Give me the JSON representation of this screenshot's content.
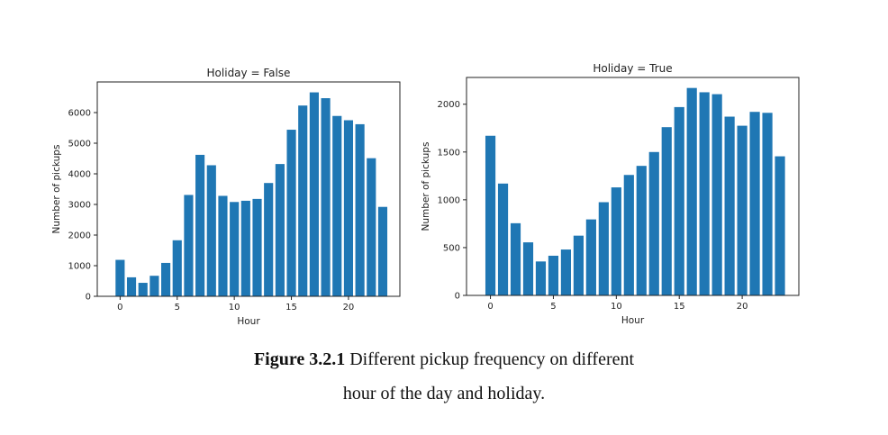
{
  "chart_data": [
    {
      "type": "bar",
      "title": "Holiday = False",
      "xlabel": "Hour",
      "ylabel": "Number of pickups",
      "categories": [
        0,
        1,
        2,
        3,
        4,
        5,
        6,
        7,
        8,
        9,
        10,
        11,
        12,
        13,
        14,
        15,
        16,
        17,
        18,
        19,
        20,
        21,
        22,
        23
      ],
      "values": [
        1190,
        620,
        440,
        670,
        1090,
        1830,
        3310,
        4620,
        4280,
        3280,
        3080,
        3120,
        3180,
        3700,
        4320,
        5440,
        6230,
        6660,
        6470,
        5890,
        5750,
        5620,
        4510,
        2920
      ],
      "xlim": [
        -2,
        24.5
      ],
      "ylim": [
        0,
        7000
      ],
      "xticks": [
        0,
        5,
        10,
        15,
        20
      ],
      "yticks": [
        0,
        1000,
        2000,
        3000,
        4000,
        5000,
        6000
      ],
      "color": "#1f77b4",
      "grid": false
    },
    {
      "type": "bar",
      "title": "Holiday = True",
      "xlabel": "Hour",
      "ylabel": "Number of pickups",
      "categories": [
        0,
        1,
        2,
        3,
        4,
        5,
        6,
        7,
        8,
        9,
        10,
        11,
        12,
        13,
        14,
        15,
        16,
        17,
        18,
        19,
        20,
        21,
        22,
        23
      ],
      "values": [
        1670,
        1170,
        755,
        555,
        355,
        415,
        480,
        625,
        795,
        975,
        1130,
        1260,
        1355,
        1500,
        1760,
        1970,
        2170,
        2125,
        2105,
        1870,
        1775,
        1920,
        1910,
        1455
      ],
      "xlim": [
        -1.9,
        24.5
      ],
      "ylim": [
        0,
        2280
      ],
      "xticks": [
        0,
        5,
        10,
        15,
        20
      ],
      "yticks": [
        0,
        500,
        1000,
        1500,
        2000
      ],
      "color": "#1f77b4",
      "grid": false
    }
  ],
  "caption": {
    "label": "Figure 3.2.1",
    "text_line1": " Different pickup frequency on different",
    "text_line2": "hour of the day and holiday."
  }
}
